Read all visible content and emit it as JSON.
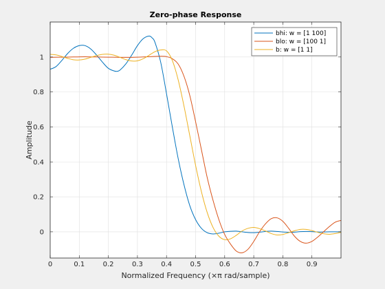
{
  "chart_data": {
    "type": "line",
    "title": "Zero-phase Response",
    "xlabel": "Normalized Frequency (×π rad/sample)",
    "ylabel": "Amplitude",
    "xlim": [
      0,
      1
    ],
    "ylim": [
      -0.15,
      1.2
    ],
    "xticks": [
      "0",
      "0.1",
      "0.2",
      "0.3",
      "0.4",
      "0.5",
      "0.6",
      "0.7",
      "0.8",
      "0.9"
    ],
    "xtick_values": [
      0,
      0.1,
      0.2,
      0.3,
      0.4,
      0.5,
      0.6,
      0.7,
      0.8,
      0.9
    ],
    "yticks": [
      "0",
      "0.2",
      "0.4",
      "0.6",
      "0.8",
      "1"
    ],
    "ytick_values": [
      0,
      0.2,
      0.4,
      0.6,
      0.8,
      1
    ],
    "grid": true,
    "legend_position": "top-right",
    "series": [
      {
        "name": "bhi: w = [1 100]",
        "color": "#0072bd",
        "x": [
          0,
          0.02,
          0.04,
          0.06,
          0.08,
          0.1,
          0.12,
          0.14,
          0.16,
          0.18,
          0.2,
          0.22,
          0.23,
          0.24,
          0.26,
          0.28,
          0.3,
          0.32,
          0.34,
          0.35,
          0.36,
          0.38,
          0.4,
          0.42,
          0.44,
          0.46,
          0.48,
          0.5,
          0.52,
          0.54,
          0.56,
          0.58,
          0.6,
          0.62,
          0.64,
          0.66,
          0.68,
          0.7,
          0.72,
          0.74,
          0.76,
          0.78,
          0.8,
          0.82,
          0.84,
          0.86,
          0.88,
          0.9,
          0.92,
          0.94,
          0.96,
          0.98,
          1.0
        ],
        "y": [
          0.93,
          0.945,
          0.98,
          1.02,
          1.05,
          1.065,
          1.065,
          1.045,
          1.01,
          0.97,
          0.935,
          0.92,
          0.918,
          0.925,
          0.96,
          1.01,
          1.065,
          1.105,
          1.12,
          1.11,
          1.085,
          0.97,
          0.79,
          0.6,
          0.42,
          0.27,
          0.15,
          0.07,
          0.02,
          -0.005,
          -0.012,
          -0.008,
          0.0,
          0.003,
          0.004,
          0.0,
          -0.004,
          -0.005,
          -0.002,
          0.002,
          0.004,
          0.002,
          -0.001,
          -0.003,
          -0.002,
          0.001,
          0.002,
          0.001,
          -0.001,
          -0.001,
          0.0,
          0.0,
          0.0
        ]
      },
      {
        "name": "blo: w = [100 1]",
        "color": "#d95319",
        "x": [
          0,
          0.04,
          0.08,
          0.12,
          0.16,
          0.2,
          0.24,
          0.28,
          0.32,
          0.36,
          0.38,
          0.4,
          0.42,
          0.44,
          0.46,
          0.48,
          0.5,
          0.52,
          0.54,
          0.56,
          0.58,
          0.6,
          0.62,
          0.64,
          0.66,
          0.68,
          0.7,
          0.72,
          0.74,
          0.76,
          0.78,
          0.8,
          0.82,
          0.84,
          0.86,
          0.88,
          0.9,
          0.92,
          0.94,
          0.96,
          0.98,
          1.0
        ],
        "y": [
          0.998,
          0.999,
          1.0,
          1.001,
          1.0,
          0.999,
          0.998,
          0.998,
          1.0,
          1.003,
          1.004,
          1.002,
          0.99,
          0.96,
          0.89,
          0.78,
          0.63,
          0.47,
          0.31,
          0.18,
          0.07,
          -0.015,
          -0.07,
          -0.11,
          -0.12,
          -0.1,
          -0.055,
          0.0,
          0.045,
          0.075,
          0.08,
          0.06,
          0.02,
          -0.025,
          -0.055,
          -0.065,
          -0.055,
          -0.03,
          0.0,
          0.03,
          0.055,
          0.065
        ]
      },
      {
        "name": "b: w = [1 1]",
        "color": "#edb120",
        "x": [
          0,
          0.02,
          0.04,
          0.06,
          0.08,
          0.1,
          0.12,
          0.14,
          0.16,
          0.18,
          0.2,
          0.22,
          0.24,
          0.26,
          0.28,
          0.3,
          0.32,
          0.34,
          0.36,
          0.38,
          0.4,
          0.42,
          0.44,
          0.46,
          0.48,
          0.5,
          0.52,
          0.54,
          0.56,
          0.58,
          0.6,
          0.62,
          0.64,
          0.66,
          0.68,
          0.7,
          0.72,
          0.74,
          0.76,
          0.78,
          0.8,
          0.82,
          0.84,
          0.86,
          0.88,
          0.9,
          0.92,
          0.94,
          0.96,
          0.98,
          1.0
        ],
        "y": [
          1.015,
          1.012,
          1.003,
          0.992,
          0.984,
          0.983,
          0.988,
          0.998,
          1.008,
          1.015,
          1.016,
          1.01,
          0.998,
          0.985,
          0.977,
          0.978,
          0.99,
          1.01,
          1.03,
          1.04,
          1.035,
          0.98,
          0.87,
          0.72,
          0.55,
          0.38,
          0.23,
          0.11,
          0.025,
          -0.025,
          -0.045,
          -0.04,
          -0.02,
          0.005,
          0.02,
          0.025,
          0.018,
          0.005,
          -0.01,
          -0.018,
          -0.015,
          -0.005,
          0.006,
          0.014,
          0.014,
          0.007,
          -0.003,
          -0.011,
          -0.014,
          -0.01,
          -0.003
        ]
      }
    ]
  }
}
